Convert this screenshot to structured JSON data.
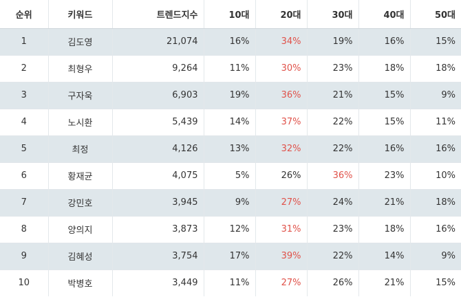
{
  "headers": {
    "rank": "순위",
    "keyword": "키워드",
    "score": "트렌드지수",
    "age10": "10대",
    "age20": "20대",
    "age30": "30대",
    "age40": "40대",
    "age50": "50대"
  },
  "highlight_color": "#e0524a",
  "rows": [
    {
      "rank": "1",
      "keyword": "김도영",
      "score": "21,074",
      "age10": "16%",
      "age20": "34%",
      "age30": "19%",
      "age40": "16%",
      "age50": "15%",
      "peak": "age20"
    },
    {
      "rank": "2",
      "keyword": "최형우",
      "score": "9,264",
      "age10": "11%",
      "age20": "30%",
      "age30": "23%",
      "age40": "18%",
      "age50": "18%",
      "peak": "age20"
    },
    {
      "rank": "3",
      "keyword": "구자욱",
      "score": "6,903",
      "age10": "19%",
      "age20": "36%",
      "age30": "21%",
      "age40": "15%",
      "age50": "9%",
      "peak": "age20"
    },
    {
      "rank": "4",
      "keyword": "노시환",
      "score": "5,439",
      "age10": "14%",
      "age20": "37%",
      "age30": "22%",
      "age40": "15%",
      "age50": "11%",
      "peak": "age20"
    },
    {
      "rank": "5",
      "keyword": "최정",
      "score": "4,126",
      "age10": "13%",
      "age20": "32%",
      "age30": "22%",
      "age40": "16%",
      "age50": "16%",
      "peak": "age20"
    },
    {
      "rank": "6",
      "keyword": "황재균",
      "score": "4,075",
      "age10": "5%",
      "age20": "26%",
      "age30": "36%",
      "age40": "23%",
      "age50": "10%",
      "peak": "age30"
    },
    {
      "rank": "7",
      "keyword": "강민호",
      "score": "3,945",
      "age10": "9%",
      "age20": "27%",
      "age30": "24%",
      "age40": "21%",
      "age50": "18%",
      "peak": "age20"
    },
    {
      "rank": "8",
      "keyword": "양의지",
      "score": "3,873",
      "age10": "12%",
      "age20": "31%",
      "age30": "23%",
      "age40": "18%",
      "age50": "16%",
      "peak": "age20"
    },
    {
      "rank": "9",
      "keyword": "김혜성",
      "score": "3,754",
      "age10": "17%",
      "age20": "39%",
      "age30": "22%",
      "age40": "14%",
      "age50": "9%",
      "peak": "age20"
    },
    {
      "rank": "10",
      "keyword": "박병호",
      "score": "3,449",
      "age10": "11%",
      "age20": "27%",
      "age30": "26%",
      "age40": "21%",
      "age50": "15%",
      "peak": "age20"
    }
  ]
}
